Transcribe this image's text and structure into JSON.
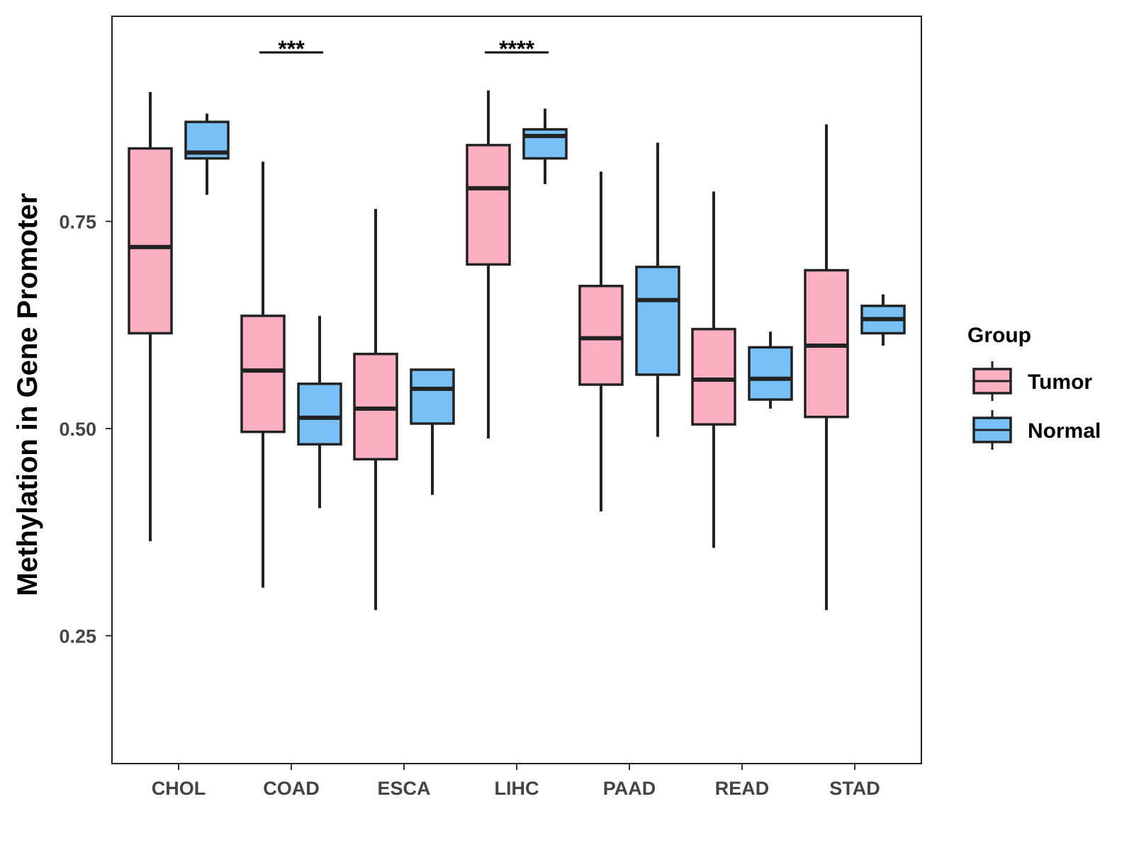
{
  "chart_data": {
    "type": "boxplot",
    "title": "",
    "xlabel": "",
    "ylabel": "Methylation in Gene Promoter",
    "ylim": [
      0.1,
      1.0
    ],
    "yticks": [
      0.25,
      0.5,
      0.75
    ],
    "ytick_labels": [
      "0.25",
      "0.50",
      "0.75"
    ],
    "grid": false,
    "legend": {
      "title": "Group",
      "position": "right",
      "entries": [
        {
          "name": "Tumor",
          "color": "#FBAFC0"
        },
        {
          "name": "Normal",
          "color": "#77C1F7"
        }
      ]
    },
    "categories": [
      "CHOL",
      "COAD",
      "ESCA",
      "LIHC",
      "PAAD",
      "READ",
      "STAD"
    ],
    "series": [
      {
        "name": "Tumor",
        "color": "#FBAFC0",
        "boxes": [
          {
            "min": 0.364,
            "q1": 0.615,
            "median": 0.719,
            "q3": 0.838,
            "max": 0.906
          },
          {
            "min": 0.308,
            "q1": 0.496,
            "median": 0.57,
            "q3": 0.636,
            "max": 0.822
          },
          {
            "min": 0.281,
            "q1": 0.463,
            "median": 0.524,
            "q3": 0.59,
            "max": 0.765
          },
          {
            "min": 0.488,
            "q1": 0.698,
            "median": 0.79,
            "q3": 0.842,
            "max": 0.908
          },
          {
            "min": 0.4,
            "q1": 0.553,
            "median": 0.609,
            "q3": 0.672,
            "max": 0.81
          },
          {
            "min": 0.356,
            "q1": 0.505,
            "median": 0.559,
            "q3": 0.62,
            "max": 0.786
          },
          {
            "min": 0.281,
            "q1": 0.514,
            "median": 0.6,
            "q3": 0.691,
            "max": 0.867
          }
        ]
      },
      {
        "name": "Normal",
        "color": "#77C1F7",
        "boxes": [
          {
            "min": 0.782,
            "q1": 0.826,
            "median": 0.833,
            "q3": 0.87,
            "max": 0.88
          },
          {
            "min": 0.404,
            "q1": 0.481,
            "median": 0.513,
            "q3": 0.554,
            "max": 0.636
          },
          {
            "min": 0.42,
            "q1": 0.506,
            "median": 0.548,
            "q3": 0.571,
            "max": 0.571
          },
          {
            "min": 0.795,
            "q1": 0.826,
            "median": 0.853,
            "q3": 0.861,
            "max": 0.886
          },
          {
            "min": 0.49,
            "q1": 0.565,
            "median": 0.655,
            "q3": 0.695,
            "max": 0.845
          },
          {
            "min": 0.524,
            "q1": 0.535,
            "median": 0.56,
            "q3": 0.598,
            "max": 0.617
          },
          {
            "min": 0.6,
            "q1": 0.615,
            "median": 0.632,
            "q3": 0.648,
            "max": 0.662
          }
        ]
      }
    ],
    "annotations": [
      {
        "category": "COAD",
        "label": "***"
      },
      {
        "category": "LIHC",
        "label": "****"
      }
    ]
  }
}
